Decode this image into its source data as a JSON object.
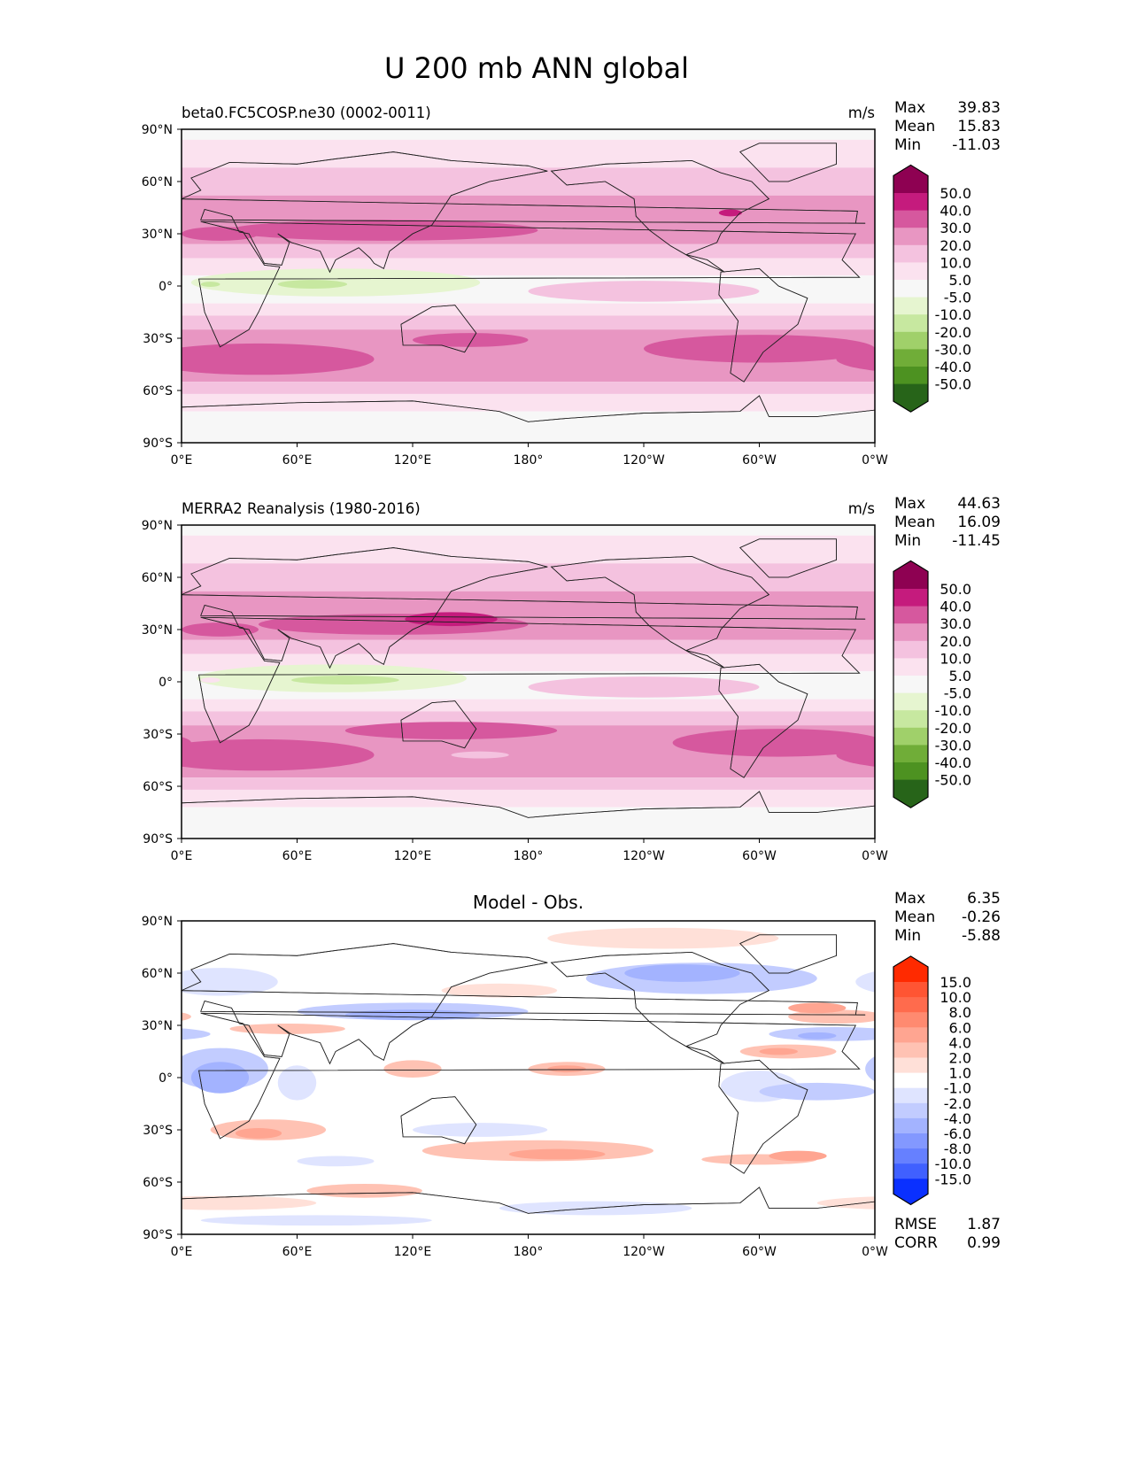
{
  "figure": {
    "title": "U 200 mb ANN global"
  },
  "axes": {
    "x_ticks": [
      "0°E",
      "60°E",
      "120°E",
      "180°",
      "120°W",
      "60°W",
      "0°W"
    ],
    "y_ticks": [
      "90°N",
      "60°N",
      "30°N",
      "0°",
      "30°S",
      "60°S",
      "90°S"
    ]
  },
  "stat_labels": {
    "max": "Max",
    "mean": "Mean",
    "min": "Min",
    "rmse": "RMSE",
    "corr": "CORR"
  },
  "panels": [
    {
      "title": "beta0.FC5COSP.ne30 (0002-0011)",
      "units": "m/s",
      "stats": {
        "max": "39.83",
        "mean": "15.83",
        "min": "-11.03"
      }
    },
    {
      "title": "MERRA2 Reanalysis (1980-2016)",
      "units": "m/s",
      "stats": {
        "max": "44.63",
        "mean": "16.09",
        "min": "-11.45"
      }
    },
    {
      "title": "Model - Obs.",
      "stats": {
        "max": "6.35",
        "mean": "-0.26",
        "min": "-5.88",
        "rmse": "1.87",
        "corr": "0.99"
      }
    }
  ],
  "chart_data": {
    "type": "heatmap",
    "title": "U 200 mb ANN global",
    "variable": "U 200 mb",
    "units": "m/s",
    "x_range": [
      0,
      360
    ],
    "y_range": [
      -90,
      90
    ],
    "colorbars": {
      "field": {
        "levels": [
          "50.0",
          "40.0",
          "30.0",
          "20.0",
          "10.0",
          "5.0",
          "-5.0",
          "-10.0",
          "-20.0",
          "-30.0",
          "-40.0",
          "-50.0"
        ],
        "colors": [
          "#8e0152",
          "#c51b7d",
          "#d6589e",
          "#e896c2",
          "#f4c2df",
          "#fbe2ef",
          "#f7f7f7",
          "#e6f5d0",
          "#c7e8a0",
          "#a0d06a",
          "#70ad38",
          "#4d9221",
          "#276419"
        ]
      },
      "diff": {
        "levels": [
          "15.0",
          "10.0",
          "8.0",
          "6.0",
          "4.0",
          "2.0",
          "1.0",
          "-1.0",
          "-2.0",
          "-4.0",
          "-6.0",
          "-8.0",
          "-10.0",
          "-15.0"
        ],
        "colors": [
          "#ff2a00",
          "#ff5533",
          "#ff6b4d",
          "#ff8a70",
          "#ffa591",
          "#ffc2b3",
          "#ffe0d8",
          "#ffffff",
          "#dfe4ff",
          "#c2ccff",
          "#a3b3ff",
          "#8398ff",
          "#6680ff",
          "#4060ff",
          "#0a30ff"
        ]
      }
    }
  }
}
